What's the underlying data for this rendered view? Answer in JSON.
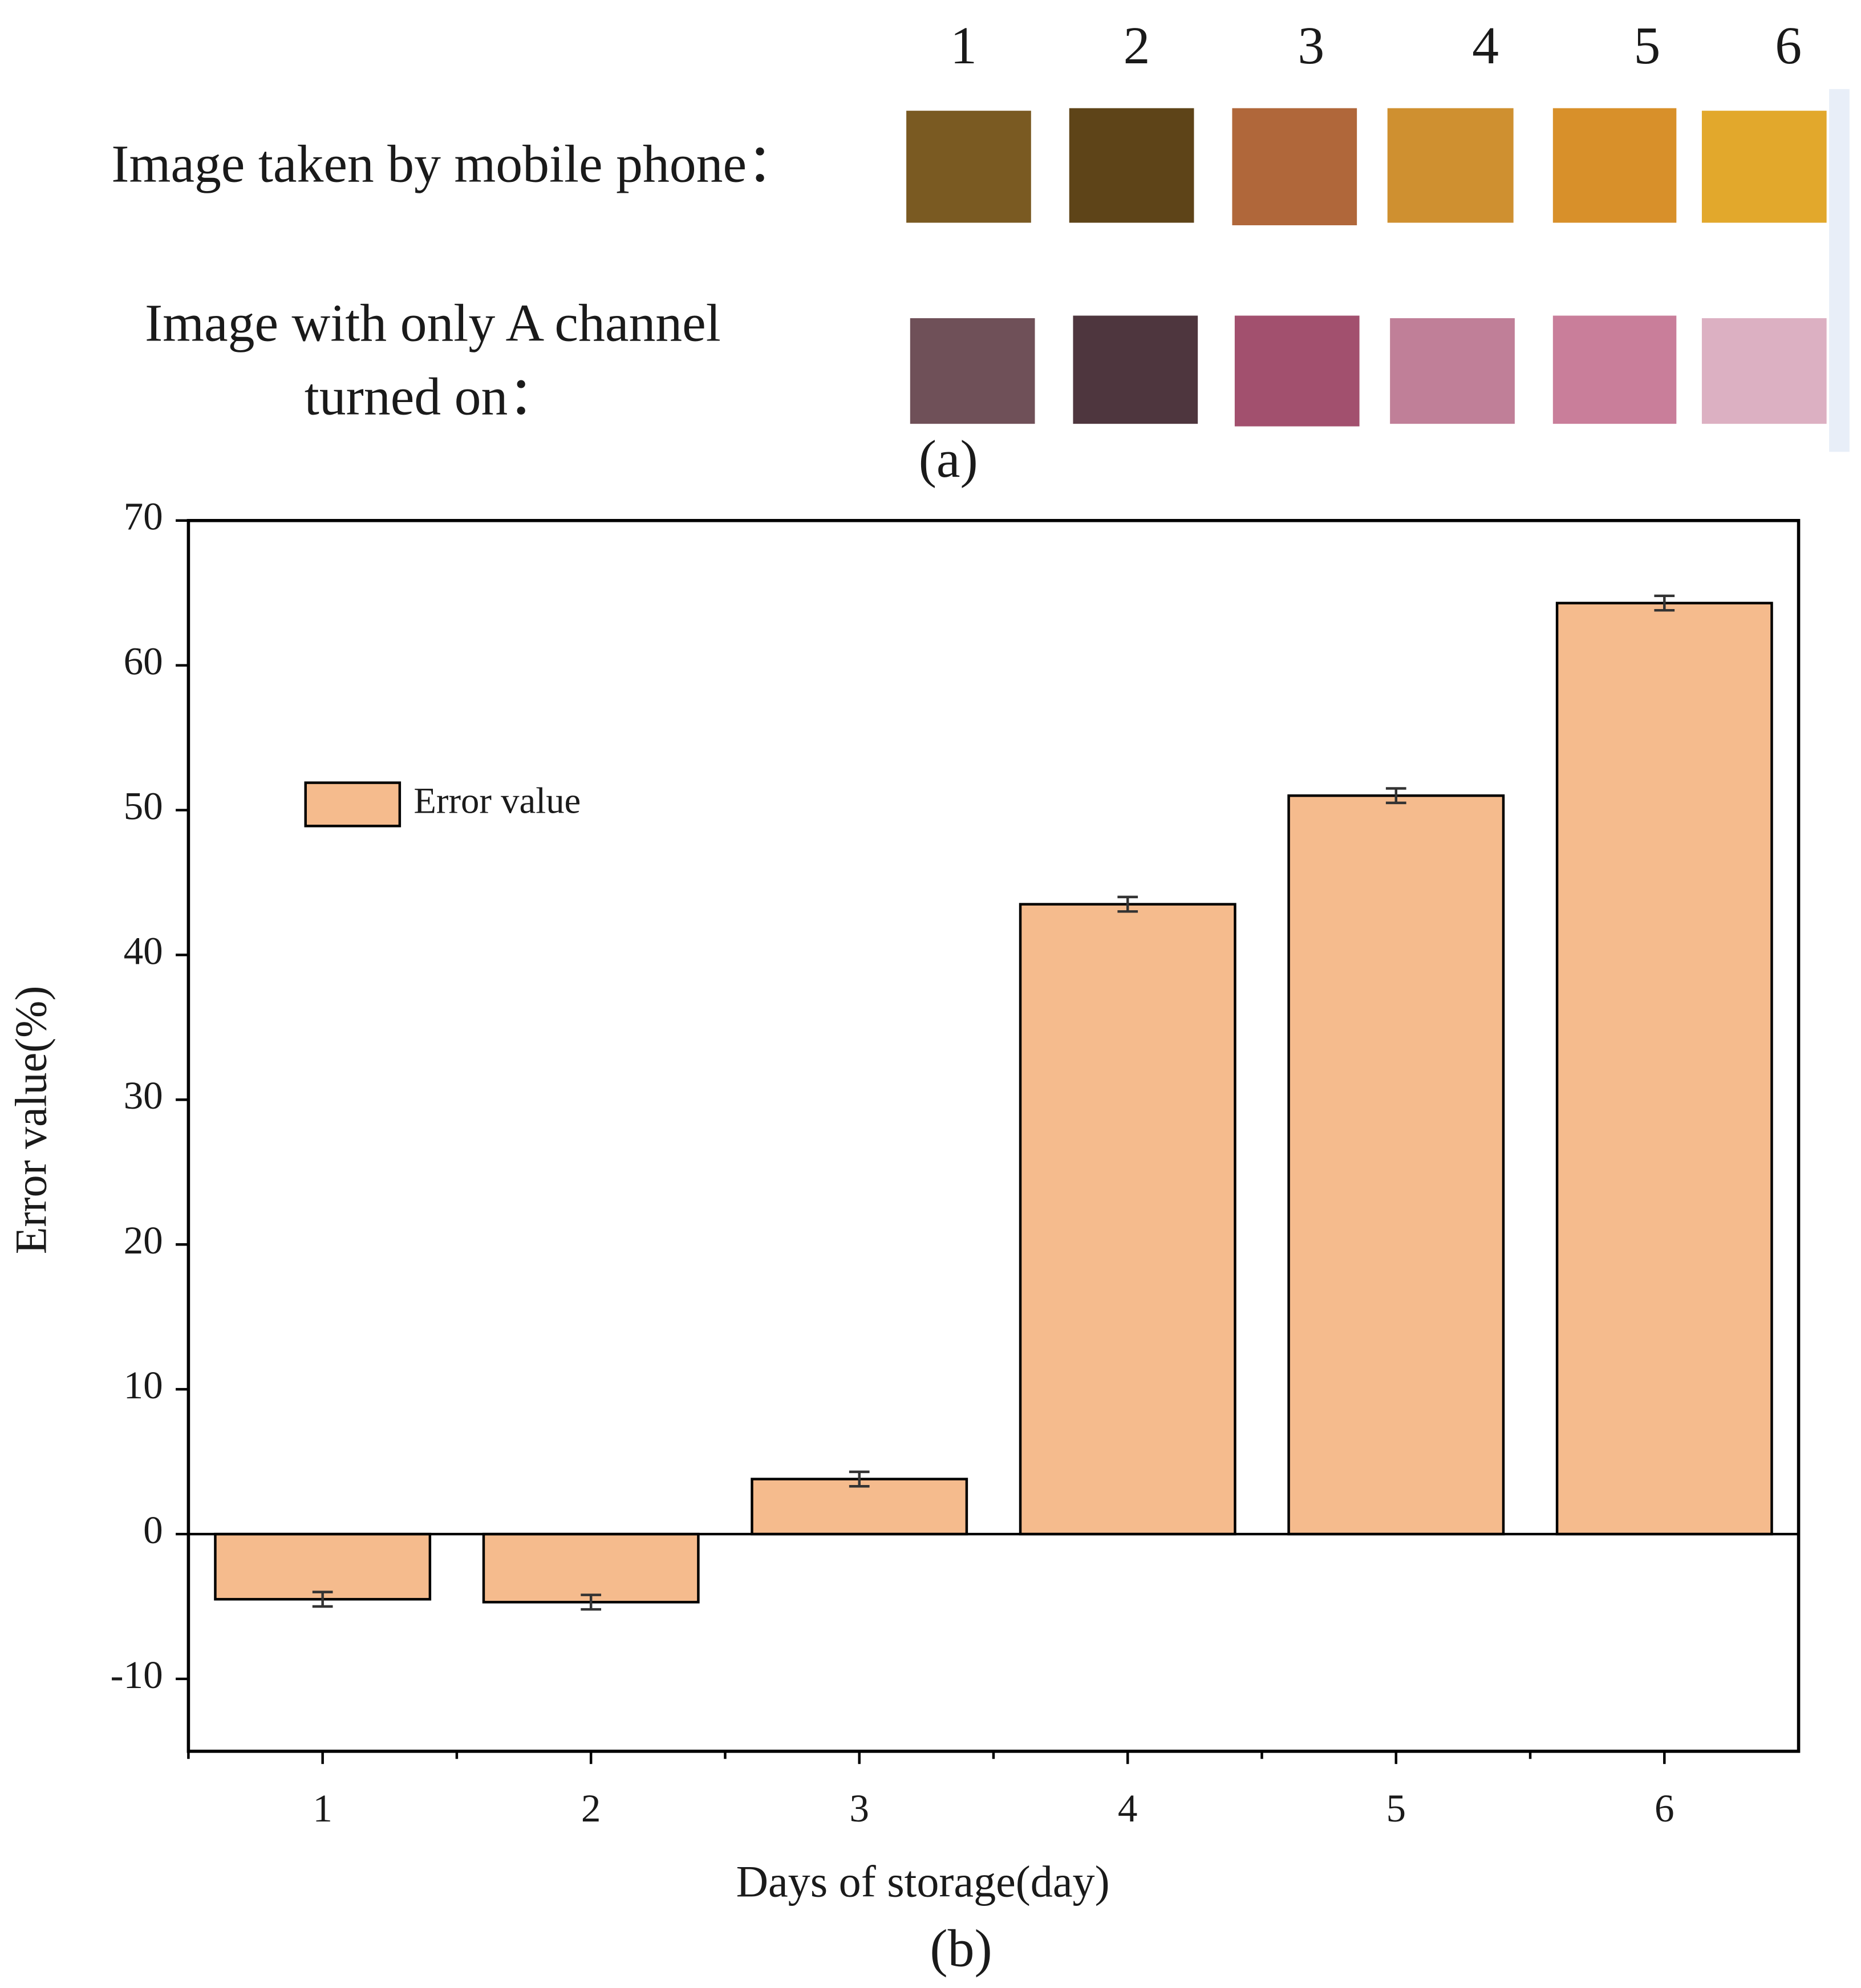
{
  "panel_a": {
    "columns": [
      "1",
      "2",
      "3",
      "4",
      "5",
      "6"
    ],
    "row_labels": [
      [
        "Image taken by mobile phone："
      ],
      [
        "Image with only A channel",
        "turned on："
      ]
    ],
    "label": "(a)"
  },
  "chart_data": {
    "type": "bar",
    "categories": [
      "1",
      "2",
      "3",
      "4",
      "5",
      "6"
    ],
    "series": [
      {
        "name": "Error value",
        "color": "#f5bb8d",
        "values": [
          -4.5,
          -4.7,
          3.8,
          43.5,
          51.0,
          64.3
        ],
        "errors": [
          0.5,
          0.5,
          0.5,
          0.5,
          0.5,
          0.5
        ]
      }
    ],
    "xlabel": "Days of storage(day)",
    "ylabel": "Error value(%)",
    "ylim": [
      -15,
      70
    ],
    "yticks": [
      -10,
      0,
      10,
      20,
      30,
      40,
      50,
      60,
      70
    ],
    "legend": "upper left"
  },
  "panel_b": {
    "label": "(b)"
  }
}
